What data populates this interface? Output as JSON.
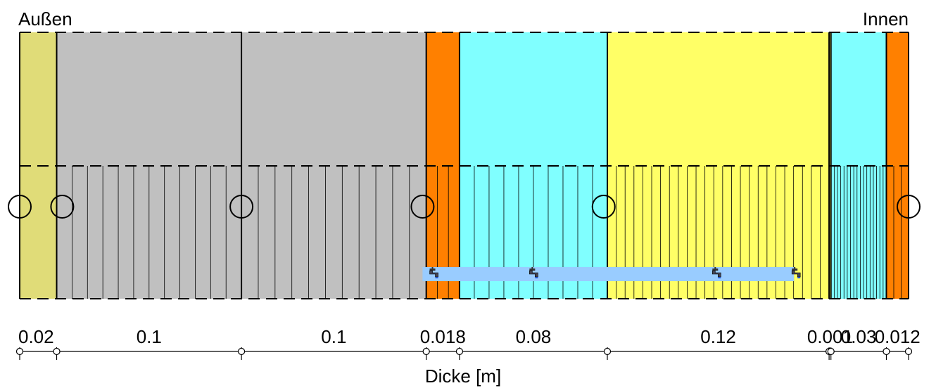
{
  "header": {
    "outside_label": "Außen",
    "inside_label": "Innen"
  },
  "axis": {
    "title": "Dicke [m]"
  },
  "layers": [
    {
      "thickness": 0.02,
      "label": "0.02",
      "color": "#E0DC78",
      "grid_lines": 0
    },
    {
      "thickness": 0.1,
      "label": "0.1",
      "color": "#C0C0C0",
      "grid_lines": 11
    },
    {
      "thickness": 0.1,
      "label": "0.1",
      "color": "#C0C0C0",
      "grid_lines": 10
    },
    {
      "thickness": 0.018,
      "label": "0.018",
      "color": "#FF8000",
      "grid_lines": 2
    },
    {
      "thickness": 0.08,
      "label": "0.08",
      "color": "#80FFFF",
      "grid_lines": 9
    },
    {
      "thickness": 0.12,
      "label": "0.12",
      "color": "#FFFF66",
      "grid_lines": 24
    },
    {
      "thickness": 0.001,
      "label": "0.001",
      "color": "#FFFF66",
      "grid_lines": 0
    },
    {
      "thickness": 0.03,
      "label": "0.03",
      "color": "#80FFFF",
      "grid_lines": 16
    },
    {
      "thickness": 0.012,
      "label": "0.012",
      "color": "#FF8000",
      "grid_lines": 2
    }
  ],
  "monitor_points": [
    0.0,
    0.023,
    0.12,
    0.218,
    0.316,
    0.481
  ],
  "moisture_source": {
    "start": 0.218,
    "end": 0.419,
    "color": "#99CCFF",
    "tap_positions": [
      0.223,
      0.277,
      0.376,
      0.419
    ]
  },
  "colors": {
    "line": "#000000",
    "background": "#FFFFFF"
  }
}
